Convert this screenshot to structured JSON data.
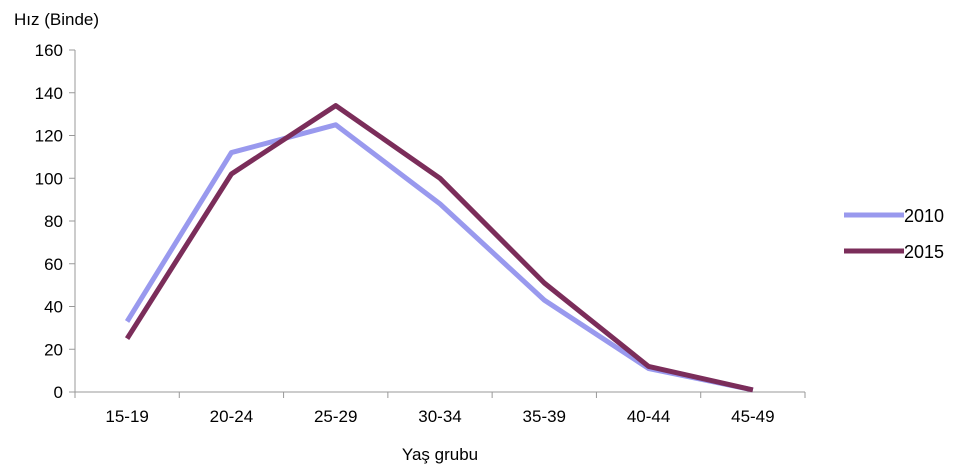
{
  "chart_data": {
    "type": "line",
    "title": "",
    "ylabel": "Hız (Binde)",
    "xlabel": "Yaş grubu",
    "categories": [
      "15-19",
      "20-24",
      "25-29",
      "30-34",
      "35-39",
      "40-44",
      "45-49"
    ],
    "ylim": [
      0,
      160
    ],
    "yticks": [
      0,
      20,
      40,
      60,
      80,
      100,
      120,
      140,
      160
    ],
    "grid": false,
    "legend_position": "right",
    "series": [
      {
        "name": "2010",
        "color": "#9999ee",
        "values": [
          33,
          112,
          125,
          88,
          43,
          11,
          1
        ]
      },
      {
        "name": "2015",
        "color": "#7b2d5a",
        "values": [
          25,
          102,
          134,
          100,
          51,
          12,
          1
        ]
      }
    ]
  }
}
